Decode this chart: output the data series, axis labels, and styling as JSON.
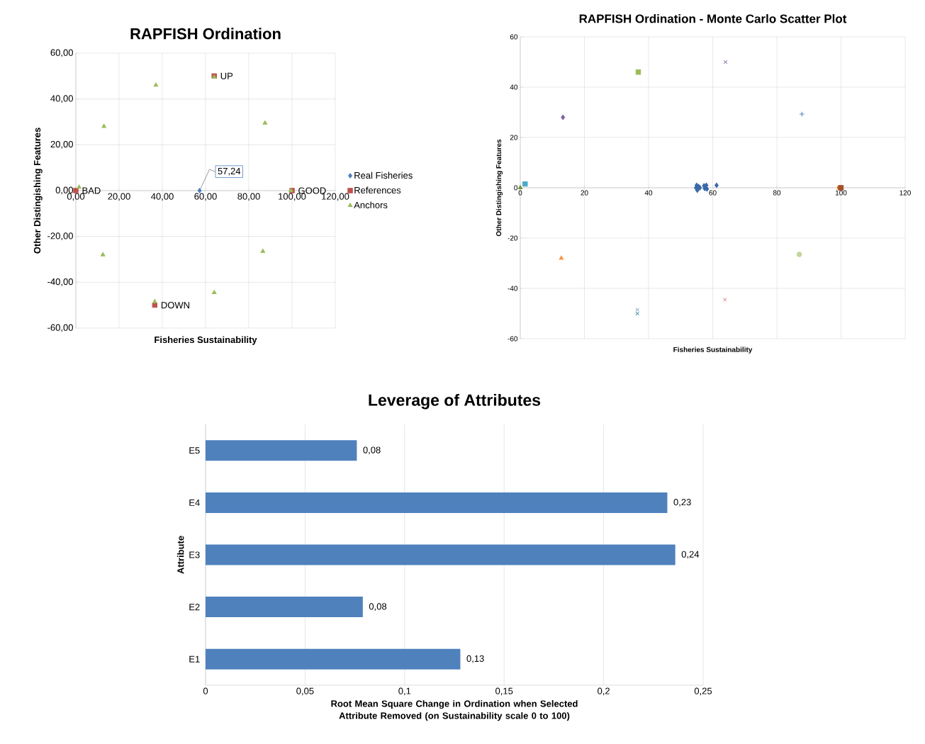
{
  "chart_data": [
    {
      "type": "scatter",
      "title": "RAPFISH Ordination",
      "xlabel": "Fisheries Sustainability",
      "ylabel": "Other Distingishing  Features",
      "xlim": [
        0,
        120
      ],
      "ylim": [
        -60,
        60
      ],
      "xticks": [
        {
          "value": 0,
          "label": "0,00"
        },
        {
          "value": 20,
          "label": "20,00"
        },
        {
          "value": 40,
          "label": "40,00"
        },
        {
          "value": 60,
          "label": "60,00"
        },
        {
          "value": 80,
          "label": "80,00"
        },
        {
          "value": 100,
          "label": "100,00"
        },
        {
          "value": 120,
          "label": "120,00"
        }
      ],
      "yticks": [
        {
          "value": -60,
          "label": "-60,00"
        },
        {
          "value": -40,
          "label": "-40,00"
        },
        {
          "value": -20,
          "label": "-20,00"
        },
        {
          "value": 0,
          "label": "0,00"
        },
        {
          "value": 20,
          "label": "20,00"
        },
        {
          "value": 40,
          "label": "40,00"
        },
        {
          "value": 60,
          "label": "60,00"
        }
      ],
      "grid": true,
      "legend": "right",
      "annotations": [
        {
          "text": "57,24",
          "x": 57.24,
          "y": 0
        }
      ],
      "series": [
        {
          "name": "Real Fisheries",
          "color": "#4f81bd",
          "marker": "diamond",
          "x": [
            57.24
          ],
          "values": [
            0
          ]
        },
        {
          "name": "References",
          "color": "#c0504d",
          "marker": "square",
          "x": [
            0,
            100,
            64,
            36.5
          ],
          "values": [
            0,
            0,
            50,
            -50
          ],
          "value_labels": [
            "BAD",
            "GOOD",
            "UP",
            "DOWN"
          ]
        },
        {
          "name": "Anchors",
          "color": "#9bbb59",
          "marker": "triangle",
          "x": [
            1.5,
            13,
            37,
            64,
            87.5,
            99.5,
            86.5,
            64,
            36.5,
            12.5
          ],
          "values": [
            1.5,
            28,
            46,
            49.5,
            29.5,
            0,
            -26.5,
            -44.5,
            -48.5,
            -28
          ]
        }
      ]
    },
    {
      "type": "scatter",
      "title": "RAPFISH Ordination - Monte Carlo Scatter Plot",
      "xlabel": "Fisheries Sustainability",
      "ylabel": "Other Distingishing Features",
      "xlim": [
        0,
        120
      ],
      "ylim": [
        -60,
        60
      ],
      "xticks": [
        0,
        20,
        40,
        60,
        80,
        100,
        120
      ],
      "yticks": [
        -60,
        -40,
        -20,
        0,
        20,
        40,
        60
      ],
      "grid": true,
      "series": [
        {
          "color": "#3b6aa8",
          "marker": "diamond",
          "x": [
            54.8,
            55,
            55.2,
            55.6,
            56,
            57.3,
            57.5,
            58,
            58.2,
            57.8,
            61.2
          ],
          "values": [
            0,
            1,
            -1,
            0.5,
            0,
            0.8,
            -0.3,
            1,
            -0.5,
            0,
            1
          ]
        },
        {
          "color": "#4bacc6",
          "marker": "square",
          "x": [
            1.5
          ],
          "values": [
            1.5
          ]
        },
        {
          "color": "#77933c",
          "marker": "triangle",
          "x": [
            0
          ],
          "values": [
            0
          ]
        },
        {
          "color": "#8064a2",
          "marker": "diamond",
          "x": [
            13.3
          ],
          "values": [
            28
          ]
        },
        {
          "color": "#f79646",
          "marker": "triangle",
          "x": [
            12.8
          ],
          "values": [
            -28
          ]
        },
        {
          "color": "#9bbb59",
          "marker": "square",
          "x": [
            36.8
          ],
          "values": [
            46
          ]
        },
        {
          "color": "#7f5f9f",
          "marker": "cross",
          "x": [
            64
          ],
          "values": [
            50
          ]
        },
        {
          "color": "#4f81bd",
          "marker": "plus",
          "x": [
            87.8
          ],
          "values": [
            29.3
          ]
        },
        {
          "color": "#c3d69b",
          "marker": "circle",
          "x": [
            87
          ],
          "values": [
            -26.5
          ]
        },
        {
          "color": "#d99694",
          "marker": "cross",
          "x": [
            63.8
          ],
          "values": [
            -44.5
          ]
        },
        {
          "color": "#95b3d7",
          "marker": "cross",
          "x": [
            36.5
          ],
          "values": [
            -48.5
          ]
        },
        {
          "color": "#31859c",
          "marker": "cross",
          "x": [
            36.5
          ],
          "values": [
            -50
          ]
        },
        {
          "color": "#e46c0a",
          "marker": "circle",
          "x": [
            99.6
          ],
          "values": [
            0
          ]
        },
        {
          "color": "#a0522d",
          "marker": "square",
          "x": [
            100
          ],
          "values": [
            0
          ]
        }
      ]
    },
    {
      "type": "bar",
      "orientation": "horizontal",
      "title": "Leverage of Attributes",
      "xlabel": "Root Mean Square Change in Ordination when Selected Attribute Removed (on Sustainability scale 0 to 100)",
      "ylabel": "Attribute",
      "categories": [
        "E5",
        "E4",
        "E3",
        "E2",
        "E1"
      ],
      "xlim": [
        0,
        0.25
      ],
      "xticks": [
        0,
        {
          "value": 0.05,
          "label": "0,05"
        },
        {
          "value": 0.1,
          "label": "0,1"
        },
        {
          "value": 0.15,
          "label": "0,15"
        },
        {
          "value": 0.2,
          "label": "0,2"
        },
        {
          "value": 0.25,
          "label": "0,25"
        }
      ],
      "grid": "x",
      "series": [
        {
          "color": "#4f81bd",
          "values": [
            0.076,
            0.232,
            0.236,
            0.079,
            0.128
          ],
          "value_labels": [
            "0,08",
            "0,23",
            "0,24",
            "0,08",
            "0,13"
          ]
        }
      ]
    }
  ]
}
